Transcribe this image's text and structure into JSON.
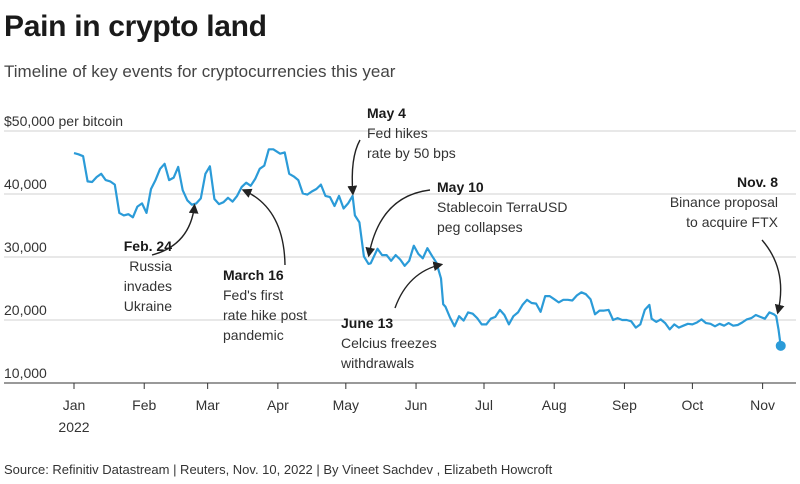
{
  "title": "Pain in crypto land",
  "subtitle": "Timeline of key events for cryptocurrencies this year",
  "source": "Source: Refinitiv Datastream | Reuters, Nov. 10, 2022 | By Vineet Sachdev , Elizabeth Howcroft",
  "colors": {
    "line": "#2b9bd8",
    "grid": "#d0d0d0",
    "arrow": "#222222"
  },
  "chart_data": {
    "type": "line",
    "ylabel": "$50,000 per bitcoin",
    "ylim": [
      10000,
      50000
    ],
    "y_ticks": [
      {
        "value": 10000,
        "label": "10,000"
      },
      {
        "value": 20000,
        "label": "20,000"
      },
      {
        "value": 30000,
        "label": "30,000"
      },
      {
        "value": 40000,
        "label": "40,000"
      },
      {
        "value": 50000,
        "label": "$50,000 per bitcoin"
      }
    ],
    "x_ticks": [
      {
        "date": "2022-01-01",
        "label": "Jan",
        "label2": "2022"
      },
      {
        "date": "2022-02-01",
        "label": "Feb"
      },
      {
        "date": "2022-03-01",
        "label": "Mar"
      },
      {
        "date": "2022-04-01",
        "label": "Apr"
      },
      {
        "date": "2022-05-01",
        "label": "May"
      },
      {
        "date": "2022-06-01",
        "label": "Jun"
      },
      {
        "date": "2022-07-01",
        "label": "Jul"
      },
      {
        "date": "2022-08-01",
        "label": "Aug"
      },
      {
        "date": "2022-09-01",
        "label": "Sep"
      },
      {
        "date": "2022-10-01",
        "label": "Oct"
      },
      {
        "date": "2022-11-01",
        "label": "Nov"
      }
    ],
    "series": [
      {
        "points": [
          [
            "2022-01-01",
            46500
          ],
          [
            "2022-01-03",
            46300
          ],
          [
            "2022-01-05",
            46000
          ],
          [
            "2022-01-07",
            42000
          ],
          [
            "2022-01-09",
            41900
          ],
          [
            "2022-01-11",
            42700
          ],
          [
            "2022-01-13",
            43200
          ],
          [
            "2022-01-15",
            42200
          ],
          [
            "2022-01-17",
            42000
          ],
          [
            "2022-01-19",
            41500
          ],
          [
            "2022-01-21",
            37000
          ],
          [
            "2022-01-23",
            36600
          ],
          [
            "2022-01-25",
            36800
          ],
          [
            "2022-01-27",
            36300
          ],
          [
            "2022-01-29",
            38000
          ],
          [
            "2022-01-31",
            38500
          ],
          [
            "2022-02-02",
            37000
          ],
          [
            "2022-02-04",
            40800
          ],
          [
            "2022-02-06",
            42200
          ],
          [
            "2022-02-08",
            44000
          ],
          [
            "2022-02-10",
            44800
          ],
          [
            "2022-02-12",
            42200
          ],
          [
            "2022-02-14",
            42600
          ],
          [
            "2022-02-16",
            44300
          ],
          [
            "2022-02-18",
            40600
          ],
          [
            "2022-02-20",
            39000
          ],
          [
            "2022-02-22",
            38300
          ],
          [
            "2022-02-24",
            38500
          ],
          [
            "2022-02-26",
            39300
          ],
          [
            "2022-02-28",
            43200
          ],
          [
            "2022-03-02",
            44400
          ],
          [
            "2022-03-04",
            39200
          ],
          [
            "2022-03-06",
            38400
          ],
          [
            "2022-03-08",
            38700
          ],
          [
            "2022-03-10",
            39400
          ],
          [
            "2022-03-12",
            38800
          ],
          [
            "2022-03-14",
            39700
          ],
          [
            "2022-03-16",
            41100
          ],
          [
            "2022-03-18",
            41800
          ],
          [
            "2022-03-20",
            41300
          ],
          [
            "2022-03-22",
            42400
          ],
          [
            "2022-03-24",
            44000
          ],
          [
            "2022-03-26",
            44500
          ],
          [
            "2022-03-28",
            47100
          ],
          [
            "2022-03-30",
            47100
          ],
          [
            "2022-04-02",
            46400
          ],
          [
            "2022-04-04",
            46600
          ],
          [
            "2022-04-06",
            43200
          ],
          [
            "2022-04-08",
            42800
          ],
          [
            "2022-04-10",
            42200
          ],
          [
            "2022-04-12",
            40100
          ],
          [
            "2022-04-14",
            39900
          ],
          [
            "2022-04-16",
            40400
          ],
          [
            "2022-04-18",
            40800
          ],
          [
            "2022-04-20",
            41500
          ],
          [
            "2022-04-22",
            39700
          ],
          [
            "2022-04-24",
            39500
          ],
          [
            "2022-04-26",
            38100
          ],
          [
            "2022-04-28",
            39700
          ],
          [
            "2022-04-30",
            37700
          ],
          [
            "2022-05-02",
            38500
          ],
          [
            "2022-05-04",
            39700
          ],
          [
            "2022-05-05",
            36600
          ],
          [
            "2022-05-07",
            35500
          ],
          [
            "2022-05-09",
            30100
          ],
          [
            "2022-05-11",
            28900
          ],
          [
            "2022-05-12",
            29000
          ],
          [
            "2022-05-15",
            31300
          ],
          [
            "2022-05-17",
            30300
          ],
          [
            "2022-05-19",
            30300
          ],
          [
            "2022-05-21",
            29400
          ],
          [
            "2022-05-23",
            30300
          ],
          [
            "2022-05-25",
            29600
          ],
          [
            "2022-05-27",
            28600
          ],
          [
            "2022-05-29",
            29400
          ],
          [
            "2022-05-31",
            31800
          ],
          [
            "2022-06-02",
            30500
          ],
          [
            "2022-06-04",
            29800
          ],
          [
            "2022-06-06",
            31400
          ],
          [
            "2022-06-08",
            30200
          ],
          [
            "2022-06-10",
            29100
          ],
          [
            "2022-06-12",
            26600
          ],
          [
            "2022-06-13",
            22500
          ],
          [
            "2022-06-14",
            22100
          ],
          [
            "2022-06-16",
            20400
          ],
          [
            "2022-06-18",
            19000
          ],
          [
            "2022-06-20",
            20600
          ],
          [
            "2022-06-22",
            19900
          ],
          [
            "2022-06-24",
            21200
          ],
          [
            "2022-06-26",
            21000
          ],
          [
            "2022-06-28",
            20300
          ],
          [
            "2022-06-30",
            19300
          ],
          [
            "2022-07-02",
            19300
          ],
          [
            "2022-07-04",
            20200
          ],
          [
            "2022-07-06",
            20500
          ],
          [
            "2022-07-08",
            21600
          ],
          [
            "2022-07-10",
            20800
          ],
          [
            "2022-07-12",
            19300
          ],
          [
            "2022-07-14",
            20600
          ],
          [
            "2022-07-16",
            21200
          ],
          [
            "2022-07-18",
            22400
          ],
          [
            "2022-07-20",
            23200
          ],
          [
            "2022-07-22",
            22700
          ],
          [
            "2022-07-24",
            22600
          ],
          [
            "2022-07-26",
            21300
          ],
          [
            "2022-07-28",
            23800
          ],
          [
            "2022-07-30",
            23800
          ],
          [
            "2022-08-01",
            23300
          ],
          [
            "2022-08-03",
            22800
          ],
          [
            "2022-08-05",
            23200
          ],
          [
            "2022-08-07",
            23200
          ],
          [
            "2022-08-09",
            23100
          ],
          [
            "2022-08-11",
            23900
          ],
          [
            "2022-08-13",
            24400
          ],
          [
            "2022-08-15",
            24100
          ],
          [
            "2022-08-17",
            23300
          ],
          [
            "2022-08-19",
            20900
          ],
          [
            "2022-08-21",
            21500
          ],
          [
            "2022-08-23",
            21500
          ],
          [
            "2022-08-25",
            21600
          ],
          [
            "2022-08-27",
            20000
          ],
          [
            "2022-08-29",
            20300
          ],
          [
            "2022-08-31",
            20000
          ],
          [
            "2022-09-02",
            20000
          ],
          [
            "2022-09-04",
            19800
          ],
          [
            "2022-09-06",
            18800
          ],
          [
            "2022-09-08",
            19300
          ],
          [
            "2022-09-10",
            21600
          ],
          [
            "2022-09-12",
            22400
          ],
          [
            "2022-09-13",
            20200
          ],
          [
            "2022-09-15",
            19700
          ],
          [
            "2022-09-17",
            20100
          ],
          [
            "2022-09-19",
            19500
          ],
          [
            "2022-09-21",
            18500
          ],
          [
            "2022-09-23",
            19300
          ],
          [
            "2022-09-25",
            18800
          ],
          [
            "2022-09-27",
            19100
          ],
          [
            "2022-09-29",
            19400
          ],
          [
            "2022-10-01",
            19300
          ],
          [
            "2022-10-03",
            19600
          ],
          [
            "2022-10-05",
            20100
          ],
          [
            "2022-10-07",
            19500
          ],
          [
            "2022-10-09",
            19400
          ],
          [
            "2022-10-11",
            19000
          ],
          [
            "2022-10-13",
            19400
          ],
          [
            "2022-10-15",
            19100
          ],
          [
            "2022-10-17",
            19500
          ],
          [
            "2022-10-19",
            19100
          ],
          [
            "2022-10-21",
            19200
          ],
          [
            "2022-10-23",
            19600
          ],
          [
            "2022-10-25",
            20100
          ],
          [
            "2022-10-27",
            20300
          ],
          [
            "2022-10-29",
            20800
          ],
          [
            "2022-10-31",
            20500
          ],
          [
            "2022-11-02",
            20200
          ],
          [
            "2022-11-04",
            21200
          ],
          [
            "2022-11-06",
            20900
          ],
          [
            "2022-11-07",
            20600
          ],
          [
            "2022-11-08",
            18500
          ],
          [
            "2022-11-09",
            15900
          ]
        ]
      }
    ],
    "end_point": [
      "2022-11-09",
      15900
    ],
    "annotations": [
      {
        "head": "Feb. 24",
        "body": [
          "Russia",
          "invades",
          "Ukraine"
        ],
        "date": "2022-02-24",
        "value": 38500,
        "align": "end"
      },
      {
        "head": "March 16",
        "body": [
          "Fed's first",
          "rate hike post",
          "pandemic"
        ],
        "date": "2022-03-16",
        "value": 41100,
        "align": "start"
      },
      {
        "head": "May 4",
        "body": [
          "Fed hikes",
          "rate by 50 bps"
        ],
        "date": "2022-05-04",
        "value": 39700,
        "align": "start"
      },
      {
        "head": "May 10",
        "body": [
          "Stablecoin TerraUSD",
          "peg collapses"
        ],
        "date": "2022-05-10",
        "value": 29800,
        "align": "start"
      },
      {
        "head": "June 13",
        "body": [
          "Celcius freezes",
          "withdrawals"
        ],
        "date": "2022-06-13",
        "value": 29100,
        "align": "start"
      },
      {
        "head": "Nov. 8",
        "body": [
          "Binance proposal",
          "to acquire FTX"
        ],
        "date": "2022-11-08",
        "value": 20700,
        "align": "end"
      }
    ]
  }
}
